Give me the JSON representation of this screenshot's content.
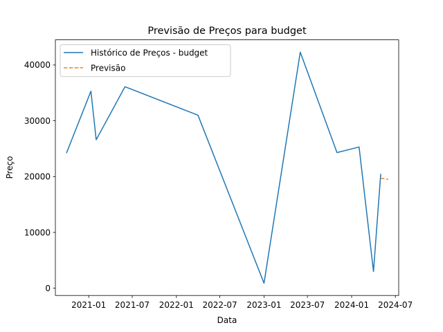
{
  "chart_data": {
    "type": "line",
    "title": "Previsão de Preços para budget",
    "xlabel": "Data",
    "ylabel": "Preço",
    "xlim": [
      "2020-08-15",
      "2024-07-15"
    ],
    "ylim": [
      -1300,
      44500
    ],
    "x_ticks": [
      "2021-01",
      "2021-07",
      "2022-01",
      "2022-07",
      "2023-01",
      "2023-07",
      "2024-01",
      "2024-07"
    ],
    "y_ticks": [
      0,
      10000,
      20000,
      30000,
      40000
    ],
    "grid": false,
    "legend_position": "top-left",
    "series": [
      {
        "name": "Histórico de Preços - budget",
        "color": "#1f77b4",
        "style": "solid",
        "points": [
          {
            "x": "2020-10-01",
            "y": 24300
          },
          {
            "x": "2021-01-10",
            "y": 35300
          },
          {
            "x": "2021-02-01",
            "y": 26600
          },
          {
            "x": "2021-06-01",
            "y": 36100
          },
          {
            "x": "2022-04-01",
            "y": 31000
          },
          {
            "x": "2023-01-01",
            "y": 900
          },
          {
            "x": "2023-06-01",
            "y": 42300
          },
          {
            "x": "2023-11-01",
            "y": 24300
          },
          {
            "x": "2024-02-01",
            "y": 25300
          },
          {
            "x": "2024-04-01",
            "y": 3000
          },
          {
            "x": "2024-05-01",
            "y": 20400
          }
        ]
      },
      {
        "name": "Previsão",
        "color": "#ff7f0e",
        "style": "dashed",
        "points": [
          {
            "x": "2024-05-01",
            "y": 19700
          },
          {
            "x": "2024-06-01",
            "y": 19500
          }
        ]
      }
    ]
  }
}
